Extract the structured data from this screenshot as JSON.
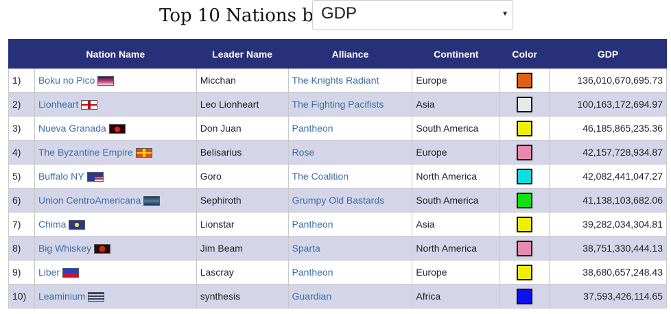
{
  "header": {
    "title": "Top 10 Nations by",
    "metric_selected": "GDP"
  },
  "columns": [
    "",
    "Nation Name",
    "Leader Name",
    "Alliance",
    "Continent",
    "Color",
    "GDP"
  ],
  "rows": [
    {
      "rank": "1)",
      "nation": "Boku no Pico",
      "flag": "flag-boku-no-pico",
      "leader": "Micchan",
      "alliance": "The Knights Radiant",
      "continent": "Europe",
      "color": "#e06010",
      "gdp": "136,010,670,695.73"
    },
    {
      "rank": "2)",
      "nation": "Lionheart",
      "flag": "flag-lionheart",
      "leader": "Leo Lionheart",
      "alliance": "The Fighting Pacifists",
      "continent": "Asia",
      "color": "#e8e8e8",
      "gdp": "100,163,172,694.97"
    },
    {
      "rank": "3)",
      "nation": "Nueva Granada",
      "flag": "flag-nueva-granada",
      "leader": "Don Juan",
      "alliance": "Pantheon",
      "continent": "South America",
      "color": "#f0ef00",
      "gdp": "46,185,865,235.36"
    },
    {
      "rank": "4)",
      "nation": "The Byzantine Empire",
      "flag": "flag-byzantine-empire",
      "leader": "Belisarius",
      "alliance": "Rose",
      "continent": "Europe",
      "color": "#e88ab0",
      "gdp": "42,157,728,934.87"
    },
    {
      "rank": "5)",
      "nation": "Buffalo NY",
      "flag": "flag-buffalo-ny",
      "leader": "Goro",
      "alliance": "The Coalition",
      "continent": "North America",
      "color": "#10dede",
      "gdp": "42,082,441,047.27"
    },
    {
      "rank": "6)",
      "nation": "Union CentroAmericana",
      "flag": "flag-union-centroamericana",
      "leader": "Sephiroth",
      "alliance": "Grumpy Old Bastards",
      "continent": "South America",
      "color": "#10e010",
      "gdp": "41,138,103,682.06"
    },
    {
      "rank": "7)",
      "nation": "Chima",
      "flag": "flag-chima",
      "leader": "Lionstar",
      "alliance": "Pantheon",
      "continent": "Asia",
      "color": "#f0ef00",
      "gdp": "39,282,034,304.81"
    },
    {
      "rank": "8)",
      "nation": "Big Whiskey",
      "flag": "flag-big-whiskey",
      "leader": "Jim Beam",
      "alliance": "Sparta",
      "continent": "North America",
      "color": "#e88ab0",
      "gdp": "38,751,330,444.13"
    },
    {
      "rank": "9)",
      "nation": "Liber",
      "flag": "flag-liber",
      "leader": "Lascray",
      "alliance": "Pantheon",
      "continent": "Europe",
      "color": "#f0ef00",
      "gdp": "38,680,657,248.43"
    },
    {
      "rank": "10)",
      "nation": "Leaminium",
      "flag": "flag-leaminium",
      "leader": "synthesis",
      "alliance": "Guardian",
      "continent": "Africa",
      "color": "#1010e8",
      "gdp": "37,593,426,114.65"
    }
  ]
}
